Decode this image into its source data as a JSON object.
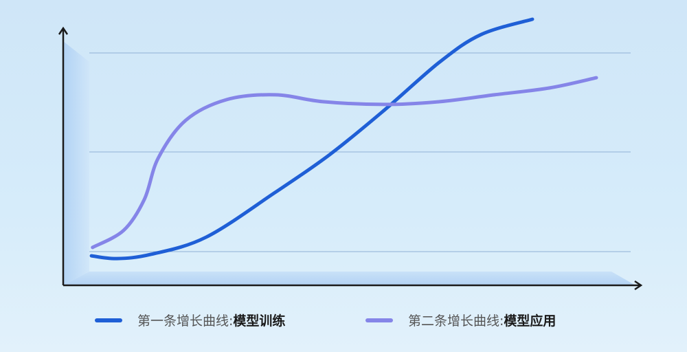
{
  "chart_data": {
    "type": "line",
    "title": "",
    "xlabel": "",
    "ylabel": "",
    "xlim": [
      0,
      100
    ],
    "ylim": [
      0,
      106
    ],
    "grid": true,
    "legend_position": "bottom",
    "series": [
      {
        "name_prefix": "第一条增长曲线: ",
        "name_bold": "模型训练",
        "color": "#1f5fd6",
        "x": [
          4.9,
          9.3,
          15.3,
          24.8,
          36.8,
          46.3,
          55.8,
          65.4,
          72.6,
          81.5
        ],
        "y": [
          11.6,
          10.5,
          12.2,
          18.9,
          36.5,
          51.4,
          68.9,
          87.8,
          98.6,
          104.6
        ]
      },
      {
        "name_prefix": "第二条增长曲线: ",
        "name_bold": "模型应用",
        "color": "#8585e8",
        "x": [
          5.1,
          10.5,
          14.1,
          16.5,
          21.3,
          28.4,
          36.8,
          45.1,
          55.8,
          65.4,
          74.9,
          84.5,
          92.6
        ],
        "y": [
          14.9,
          21.6,
          33.8,
          50,
          64.9,
          73,
          74.9,
          72.2,
          71.1,
          72.2,
          74.9,
          77.6,
          81.6
        ]
      }
    ]
  }
}
